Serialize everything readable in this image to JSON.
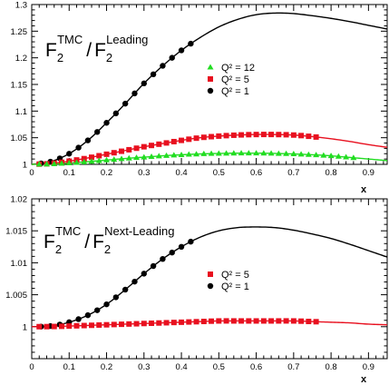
{
  "colors": {
    "black": "#000000",
    "red": "#e8101f",
    "green": "#22dd22"
  },
  "chart_data": [
    {
      "type": "line",
      "title": {
        "F": "F",
        "sub": "2",
        "sup1": "TMC",
        "slash": "/",
        "sup2": "Leading"
      },
      "xlabel": "x",
      "ylabel": "",
      "xlim": [
        0,
        0.95
      ],
      "ylim": [
        1,
        1.3
      ],
      "xticks": [
        "0",
        "0.1",
        "0.2",
        "0.3",
        "0.4",
        "0.5",
        "0.6",
        "0.7",
        "0.8",
        "0.9"
      ],
      "yticks": [
        "1",
        "1.05",
        "1.1",
        "1.15",
        "1.2",
        "1.25",
        "1.3"
      ],
      "grid": false,
      "legend_position": "center-right",
      "legend": [
        {
          "label": "Q² = 12",
          "marker": "triangle",
          "color": "#22dd22"
        },
        {
          "label": "Q² = 5",
          "marker": "square",
          "color": "#e8101f"
        },
        {
          "label": "Q² = 1",
          "marker": "circle",
          "color": "#000000"
        }
      ],
      "series": [
        {
          "name": "Q² = 1",
          "color": "#000000",
          "marker": "circle",
          "marker_x_max": 0.43,
          "x": [
            0,
            0.05,
            0.1,
            0.15,
            0.2,
            0.25,
            0.3,
            0.35,
            0.4,
            0.45,
            0.5,
            0.55,
            0.6,
            0.65,
            0.7,
            0.75,
            0.8,
            0.85,
            0.9,
            0.95
          ],
          "y": [
            1.0,
            1.005,
            1.02,
            1.045,
            1.078,
            1.114,
            1.152,
            1.185,
            1.214,
            1.238,
            1.258,
            1.272,
            1.281,
            1.284,
            1.283,
            1.279,
            1.274,
            1.268,
            1.261,
            1.254
          ]
        },
        {
          "name": "Q² = 5",
          "color": "#e8101f",
          "marker": "square",
          "marker_x_max": 0.77,
          "x": [
            0,
            0.05,
            0.1,
            0.15,
            0.2,
            0.25,
            0.3,
            0.35,
            0.4,
            0.45,
            0.5,
            0.55,
            0.6,
            0.65,
            0.7,
            0.75,
            0.8,
            0.85,
            0.9,
            0.95
          ],
          "y": [
            1.0,
            1.0015,
            1.006,
            1.012,
            1.019,
            1.026,
            1.033,
            1.039,
            1.045,
            1.05,
            1.053,
            1.055,
            1.056,
            1.056,
            1.055,
            1.052,
            1.048,
            1.043,
            1.037,
            1.032
          ]
        },
        {
          "name": "Q² = 12",
          "color": "#22dd22",
          "marker": "triangle",
          "marker_x_max": 0.87,
          "x": [
            0,
            0.05,
            0.1,
            0.15,
            0.2,
            0.25,
            0.3,
            0.35,
            0.4,
            0.45,
            0.5,
            0.55,
            0.6,
            0.65,
            0.7,
            0.75,
            0.8,
            0.85,
            0.9,
            0.95
          ],
          "y": [
            1.0,
            1.0006,
            1.0025,
            1.005,
            1.008,
            1.011,
            1.0135,
            1.016,
            1.018,
            1.0195,
            1.0205,
            1.021,
            1.021,
            1.0205,
            1.0195,
            1.018,
            1.016,
            1.013,
            1.01,
            1.007
          ]
        }
      ]
    },
    {
      "type": "line",
      "title": {
        "F": "F",
        "sub": "2",
        "sup1": "TMC",
        "slash": "/",
        "sup2": "Next-Leading"
      },
      "xlabel": "x",
      "ylabel": "",
      "xlim": [
        0,
        0.95
      ],
      "ylim": [
        0.995,
        1.02
      ],
      "xticks": [
        "0",
        "0.1",
        "0.2",
        "0.3",
        "0.4",
        "0.5",
        "0.6",
        "0.7",
        "0.8",
        "0.9"
      ],
      "yticks": [
        "1",
        "1.005",
        "1.01",
        "1.015",
        "1.02"
      ],
      "grid": false,
      "legend_position": "center-right",
      "legend": [
        {
          "label": "Q² = 5",
          "marker": "square",
          "color": "#e8101f"
        },
        {
          "label": "Q² = 1",
          "marker": "circle",
          "color": "#000000"
        }
      ],
      "series": [
        {
          "name": "Q² = 1",
          "color": "#000000",
          "marker": "circle",
          "marker_x_max": 0.43,
          "x": [
            0,
            0.05,
            0.1,
            0.15,
            0.2,
            0.25,
            0.3,
            0.35,
            0.4,
            0.45,
            0.5,
            0.55,
            0.6,
            0.65,
            0.7,
            0.75,
            0.8,
            0.85,
            0.9,
            0.95
          ],
          "y": [
            1.0,
            1.0001,
            1.0007,
            1.0018,
            1.0035,
            1.0058,
            1.0083,
            1.0106,
            1.0125,
            1.014,
            1.015,
            1.0155,
            1.0156,
            1.0155,
            1.0151,
            1.0145,
            1.0138,
            1.0129,
            1.0119,
            1.0109
          ]
        },
        {
          "name": "Q² = 5",
          "color": "#e8101f",
          "marker": "square",
          "marker_x_max": 0.77,
          "x": [
            0,
            0.05,
            0.1,
            0.15,
            0.2,
            0.25,
            0.3,
            0.35,
            0.4,
            0.45,
            0.5,
            0.55,
            0.6,
            0.65,
            0.7,
            0.75,
            0.8,
            0.85,
            0.9,
            0.95
          ],
          "y": [
            1.0,
            1.00002,
            1.0001,
            1.0002,
            1.0003,
            1.0004,
            1.0005,
            1.0006,
            1.0007,
            1.0008,
            1.0009,
            1.0009,
            1.0009,
            1.0009,
            1.0009,
            1.0008,
            1.0007,
            1.0006,
            1.0004,
            1.0003
          ]
        }
      ]
    }
  ]
}
